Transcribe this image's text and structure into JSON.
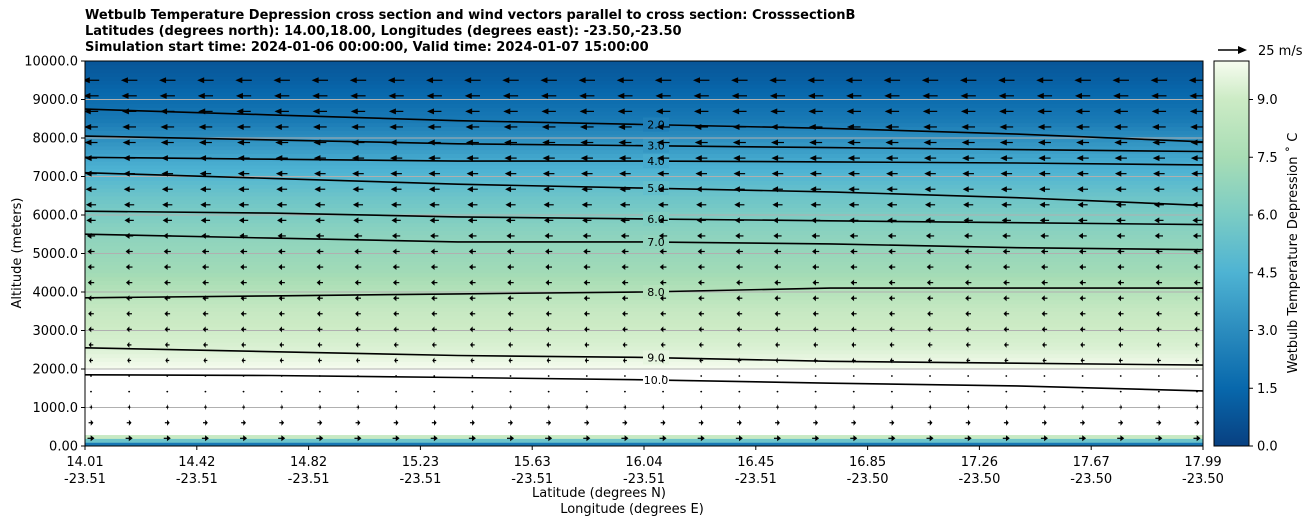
{
  "chart_data": {
    "type": "contour",
    "title_lines": [
      "Wetbulb Temperature Depression cross section and wind vectors parallel to cross section: CrosssectionB",
      "Latitudes (degrees north): 14.00,18.00, Longitudes (degrees east): -23.50,-23.50",
      "Simulation start time: 2024-01-06 00:00:00, Valid time: 2024-01-07 15:00:00"
    ],
    "ylabel": "Altitude (meters)",
    "xlabel_lat": "Latitude (degrees N)",
    "xlabel_lon": "Longitude (degrees E)",
    "ylim": [
      0,
      10000
    ],
    "yticks": [
      "0.00",
      "1000.0",
      "2000.0",
      "3000.0",
      "4000.0",
      "5000.0",
      "6000.0",
      "7000.0",
      "8000.0",
      "9000.0",
      "10000.0"
    ],
    "xticks": [
      {
        "lat": "14.01",
        "lon": "-23.51"
      },
      {
        "lat": "14.42",
        "lon": "-23.51"
      },
      {
        "lat": "14.82",
        "lon": "-23.51"
      },
      {
        "lat": "15.23",
        "lon": "-23.51"
      },
      {
        "lat": "15.63",
        "lon": "-23.51"
      },
      {
        "lat": "16.04",
        "lon": "-23.51"
      },
      {
        "lat": "16.45",
        "lon": "-23.51"
      },
      {
        "lat": "16.85",
        "lon": "-23.50"
      },
      {
        "lat": "17.26",
        "lon": "-23.50"
      },
      {
        "lat": "17.67",
        "lon": "-23.50"
      },
      {
        "lat": "17.99",
        "lon": "-23.50"
      }
    ],
    "colorbar": {
      "label": "Wetbulb Temperature Depression ˚ C",
      "range": [
        0,
        10
      ],
      "ticks": [
        "0.0",
        "1.5",
        "3.0",
        "4.5",
        "6.0",
        "7.5",
        "9.0"
      ]
    },
    "quiver_key": "25 m/s",
    "vertical_profile": [
      {
        "alt": 0,
        "value": 0.5
      },
      {
        "alt": 300,
        "value": 10.5
      },
      {
        "alt": 1000,
        "value": 10.5
      },
      {
        "alt": 1800,
        "value": 10.2
      },
      {
        "alt": 2600,
        "value": 9.3
      },
      {
        "alt": 3500,
        "value": 8.8
      },
      {
        "alt": 4500,
        "value": 7.3
      },
      {
        "alt": 5500,
        "value": 6.6
      },
      {
        "alt": 6500,
        "value": 5.5
      },
      {
        "alt": 7500,
        "value": 4.0
      },
      {
        "alt": 8500,
        "value": 2.2
      },
      {
        "alt": 9500,
        "value": 1.2
      },
      {
        "alt": 10000,
        "value": 0.8
      }
    ],
    "contours": [
      {
        "level": "2.0",
        "alt": [
          8750,
          8600,
          8450,
          8350,
          8250,
          8100,
          7900
        ],
        "label_at": 0.5
      },
      {
        "level": "3.0",
        "alt": [
          8050,
          7950,
          7850,
          7800,
          7750,
          7700,
          7650
        ],
        "label_at": 0.5
      },
      {
        "level": "4.0",
        "alt": [
          7500,
          7450,
          7400,
          7400,
          7380,
          7350,
          7300
        ],
        "label_at": 0.5
      },
      {
        "level": "5.0",
        "alt": [
          7100,
          6950,
          6800,
          6700,
          6600,
          6450,
          6250
        ],
        "label_at": 0.5
      },
      {
        "level": "6.0",
        "alt": [
          6100,
          6050,
          5950,
          5900,
          5850,
          5800,
          5750
        ],
        "label_at": 0.5
      },
      {
        "level": "7.0",
        "alt": [
          5500,
          5400,
          5300,
          5300,
          5250,
          5150,
          5100
        ],
        "label_at": 0.5
      },
      {
        "level": "8.0",
        "alt": [
          3850,
          3900,
          3950,
          4000,
          4100,
          4100,
          4100
        ],
        "label_at": 0.5
      },
      {
        "level": "9.0",
        "alt": [
          2550,
          2450,
          2350,
          2300,
          2200,
          2150,
          2100
        ],
        "label_at": 0.5
      },
      {
        "level": "10.0",
        "alt": [
          1850,
          1830,
          1780,
          1720,
          1630,
          1560,
          1430
        ],
        "label_at": 0.5
      }
    ],
    "wind_u_profile": [
      {
        "alt": 200,
        "u": 8
      },
      {
        "alt": 1000,
        "u": 3
      },
      {
        "alt": 2000,
        "u": -4
      },
      {
        "alt": 3000,
        "u": -6
      },
      {
        "alt": 4000,
        "u": -7
      },
      {
        "alt": 5000,
        "u": -8
      },
      {
        "alt": 6000,
        "u": -11
      },
      {
        "alt": 7000,
        "u": -13
      },
      {
        "alt": 8000,
        "u": -15
      },
      {
        "alt": 9000,
        "u": -17
      },
      {
        "alt": 9600,
        "u": -19
      }
    ]
  }
}
